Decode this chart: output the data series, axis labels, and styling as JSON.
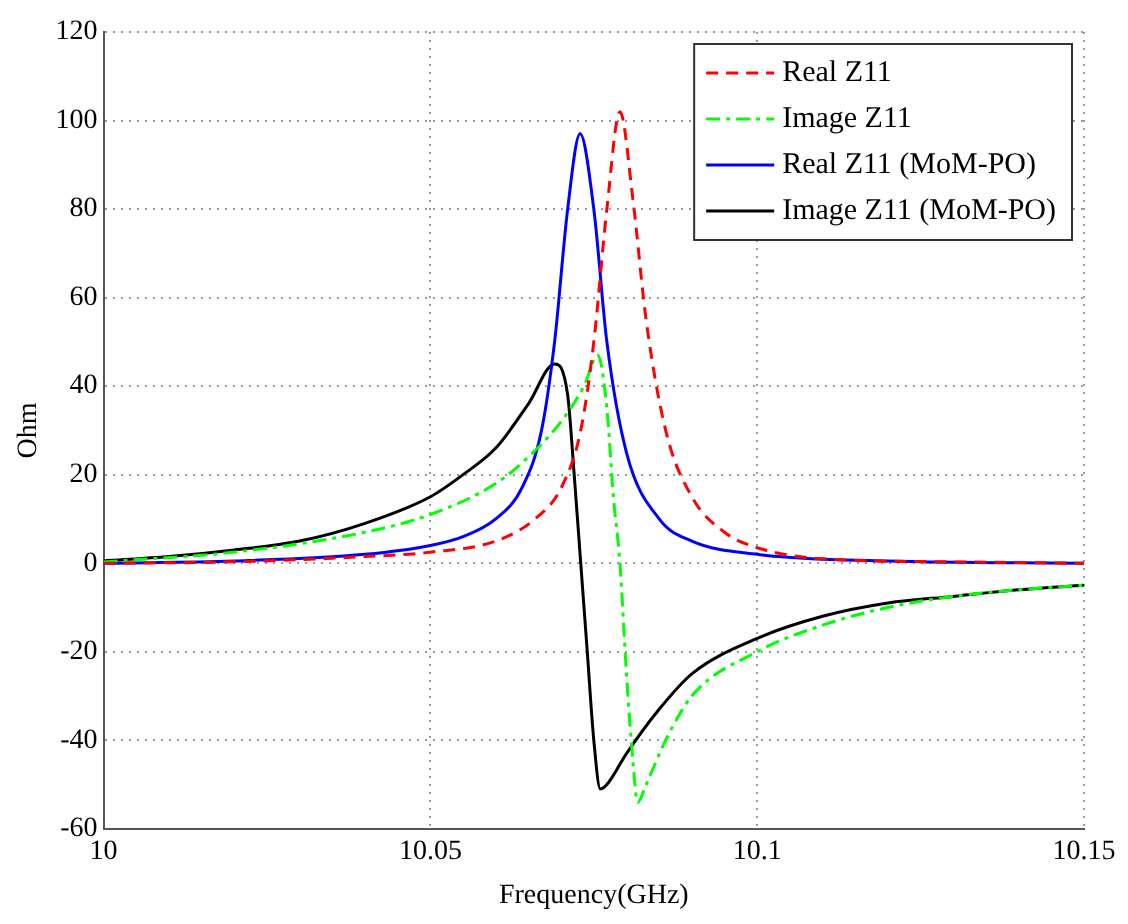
{
  "chart_data": {
    "type": "line",
    "xlabel": "Frequency(GHz)",
    "ylabel": "Ohm",
    "xlim": [
      10,
      10.15
    ],
    "xticks": [
      10,
      10.05,
      10.1,
      10.15
    ],
    "ylim": [
      -60,
      120
    ],
    "yticks": [
      -60,
      -40,
      -20,
      0,
      20,
      40,
      60,
      80,
      100,
      120
    ],
    "grid": true,
    "legend": "top right",
    "marker": "none",
    "series": [
      {
        "name": "Real Z11",
        "color": "#ff0000",
        "line_style": "dashed",
        "x": [
          10,
          10.02,
          10.04,
          10.05,
          10.06,
          10.066,
          10.07,
          10.073,
          10.075,
          10.077,
          10.079,
          10.081,
          10.083,
          10.086,
          10.09,
          10.095,
          10.1,
          10.11,
          10.13,
          10.15
        ],
        "values": [
          0,
          0.3,
          1.5,
          2.5,
          5,
          10,
          17,
          30,
          50,
          80,
          102,
          82,
          55,
          30,
          15,
          7,
          3.5,
          1,
          0.3,
          0
        ]
      },
      {
        "name": "Image Z11",
        "color": "#00ff00",
        "line_style": "dashdot",
        "x": [
          10,
          10.02,
          10.04,
          10.05,
          10.06,
          10.065,
          10.07,
          10.0735,
          10.0756,
          10.077,
          10.078,
          10.079,
          10.08,
          10.081,
          10.0817,
          10.083,
          10.086,
          10.09,
          10.1,
          10.11,
          10.12,
          10.13,
          10.14,
          10.15
        ],
        "values": [
          0.3,
          2.5,
          7,
          11,
          18,
          24,
          32,
          40,
          47,
          35,
          15,
          0,
          -25,
          -45,
          -54,
          -50,
          -40,
          -30,
          -20,
          -14,
          -10,
          -7.5,
          -6,
          -5
        ]
      },
      {
        "name": "Real Z11 (MoM-PO)",
        "color": "#0000ff",
        "line_style": "solid",
        "x": [
          10,
          10.02,
          10.04,
          10.05,
          10.055,
          10.06,
          10.064,
          10.067,
          10.069,
          10.071,
          10.0729,
          10.075,
          10.077,
          10.08,
          10.085,
          10.09,
          10.1,
          10.12,
          10.15
        ],
        "values": [
          0,
          0.5,
          2,
          4,
          6,
          10,
          17,
          30,
          50,
          80,
          97,
          80,
          50,
          25,
          10,
          5,
          2,
          0.5,
          0
        ]
      },
      {
        "name": "Image Z11 (MoM-PO)",
        "color": "#000000",
        "line_style": "solid",
        "x": [
          10,
          10.01,
          10.02,
          10.03,
          10.04,
          10.05,
          10.055,
          10.06,
          10.065,
          10.069,
          10.071,
          10.072,
          10.073,
          10.074,
          10.075,
          10.076,
          10.077,
          10.08,
          10.085,
          10.09,
          10.1,
          10.11,
          10.12,
          10.13,
          10.14,
          10.15
        ],
        "values": [
          0.5,
          1.5,
          3,
          5,
          9,
          15,
          20,
          26,
          36,
          45,
          38,
          20,
          0,
          -20,
          -40,
          -51,
          -50,
          -43,
          -33,
          -25,
          -17,
          -12,
          -9,
          -7.5,
          -6,
          -5
        ]
      }
    ]
  }
}
